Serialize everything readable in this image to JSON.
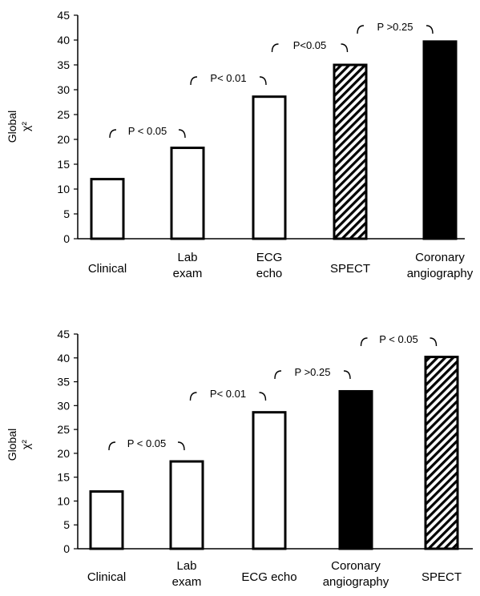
{
  "chart_data": [
    {
      "type": "bar",
      "ylabel": "Global χ²",
      "ylabel_lines": [
        "Global",
        "χ²"
      ],
      "ylim": [
        0,
        45
      ],
      "yticks": [
        "0",
        "5",
        "10",
        "15",
        "20",
        "25",
        "30",
        "35",
        "40",
        "45"
      ],
      "grid": false,
      "categories": [
        "Clinical",
        "Lab exam",
        "ECG echo",
        "SPECT",
        "Coronary angiography"
      ],
      "category_lines": [
        [
          "Clinical"
        ],
        [
          "Lab",
          "exam"
        ],
        [
          "ECG",
          "echo"
        ],
        [
          "SPECT"
        ],
        [
          "Coronary",
          "angiography"
        ]
      ],
      "values": [
        12,
        18.3,
        28.6,
        35,
        39.7
      ],
      "fills": [
        "white",
        "white",
        "white",
        "hatched",
        "black"
      ],
      "annotations": [
        {
          "between": [
            0,
            1
          ],
          "text": "P < 0.05"
        },
        {
          "between": [
            1,
            2
          ],
          "text": "P< 0.01"
        },
        {
          "between": [
            2,
            3
          ],
          "text": "P<0.05"
        },
        {
          "between": [
            3,
            4
          ],
          "text": "P >0.25"
        }
      ]
    },
    {
      "type": "bar",
      "ylabel": "Global χ²",
      "ylabel_lines": [
        "Global",
        "χ²"
      ],
      "ylim": [
        0,
        45
      ],
      "yticks": [
        "0",
        "5",
        "10",
        "15",
        "20",
        "25",
        "30",
        "35",
        "40",
        "45"
      ],
      "grid": false,
      "categories": [
        "Clinical",
        "Lab exam",
        "ECG echo",
        "Coronary angiography",
        "SPECT"
      ],
      "category_lines": [
        [
          "Clinical"
        ],
        [
          "Lab",
          "exam"
        ],
        [
          "ECG echo"
        ],
        [
          "Coronary",
          "angiography"
        ],
        [
          "SPECT"
        ]
      ],
      "values": [
        12,
        18.3,
        28.6,
        33,
        40.2
      ],
      "fills": [
        "white",
        "white",
        "white",
        "black",
        "hatched"
      ],
      "annotations": [
        {
          "between": [
            0,
            1
          ],
          "text": "P < 0.05"
        },
        {
          "between": [
            1,
            2
          ],
          "text": "P< 0.01"
        },
        {
          "between": [
            2,
            3
          ],
          "text": "P >0.25"
        },
        {
          "between": [
            3,
            4
          ],
          "text": "P < 0.05"
        }
      ]
    }
  ]
}
